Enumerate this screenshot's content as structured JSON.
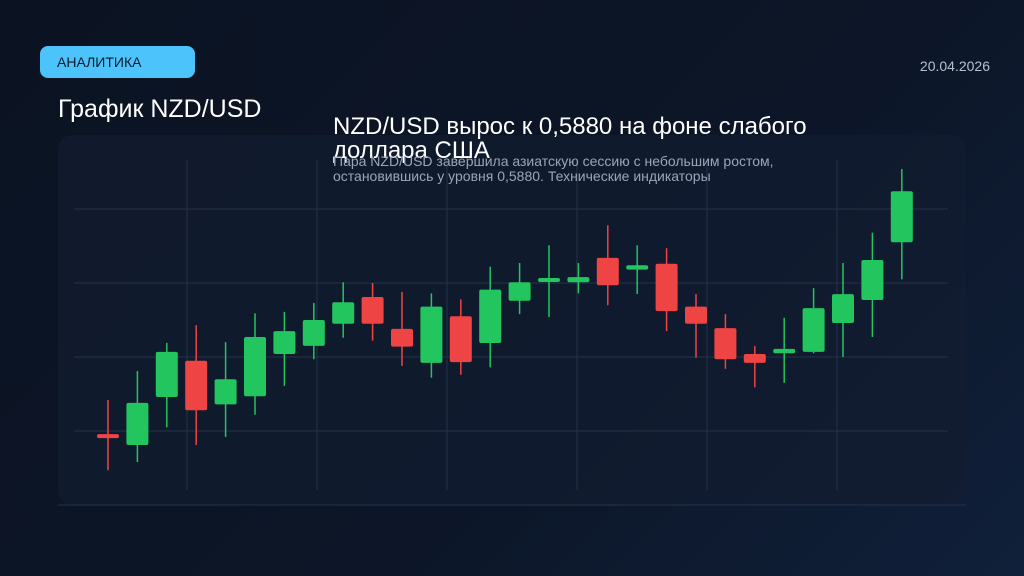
{
  "badge": "АНАЛИТИКА",
  "date": "20.04.2026",
  "title": "График NZD/USD",
  "headline": "NZD/USD вырос к 0,5880 на фоне слабого доллара США",
  "description": "Пара NZD/USD завершила азиатскую сессию с небольшим ростом, остановившись у уровня 0,5880. Технические индикаторы",
  "chart_data": {
    "type": "candlestick",
    "categories": [
      null,
      null,
      null,
      null,
      null,
      null,
      null,
      null,
      null,
      null,
      null,
      null,
      null,
      null,
      null,
      null,
      null,
      null,
      null,
      null,
      null,
      null,
      null,
      null,
      null,
      null,
      null,
      null
    ],
    "open": [
      0.93,
      0.81,
      1.46,
      1.95,
      1.36,
      1.47,
      2.04,
      2.15,
      2.45,
      2.81,
      2.38,
      1.92,
      2.55,
      2.19,
      2.76,
      2.99,
      3.01,
      3.34,
      3.18,
      3.26,
      2.68,
      2.39,
      2.04,
      2.05,
      2.07,
      2.46,
      2.77,
      3.55
    ],
    "high": [
      1.42,
      1.81,
      2.19,
      2.43,
      2.2,
      2.59,
      2.61,
      2.73,
      3.01,
      3.0,
      2.88,
      2.86,
      2.78,
      3.22,
      3.27,
      3.51,
      3.27,
      3.78,
      3.51,
      3.47,
      2.85,
      2.58,
      2.15,
      2.53,
      2.93,
      3.27,
      3.68,
      4.54
    ],
    "low": [
      0.47,
      0.58,
      1.05,
      0.81,
      0.92,
      1.22,
      1.61,
      1.97,
      2.26,
      2.22,
      1.88,
      1.72,
      1.76,
      1.86,
      2.58,
      2.54,
      2.86,
      2.7,
      2.85,
      2.35,
      1.99,
      1.84,
      1.59,
      1.65,
      2.05,
      2.0,
      2.27,
      3.05
    ],
    "close": [
      0.89,
      1.38,
      2.07,
      1.28,
      1.7,
      2.27,
      2.35,
      2.5,
      2.74,
      2.45,
      2.14,
      2.68,
      1.93,
      2.91,
      3.01,
      3.04,
      3.08,
      2.97,
      3.24,
      2.62,
      2.45,
      1.97,
      1.92,
      2.11,
      2.66,
      2.85,
      3.31,
      4.24
    ],
    "up_color": "#22c55e",
    "down_color": "#ef4444",
    "ylim": [
      0,
      5
    ],
    "yticks": [
      1,
      2,
      3,
      4
    ],
    "grid": true
  }
}
